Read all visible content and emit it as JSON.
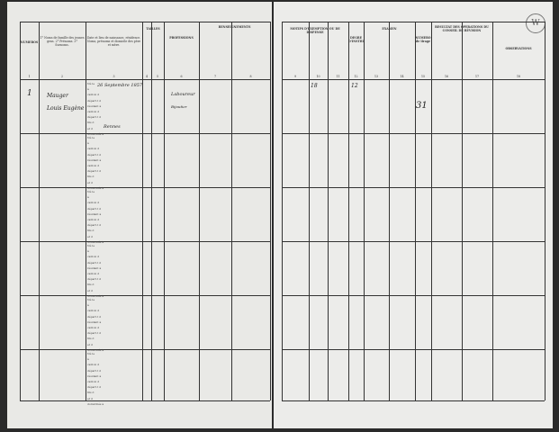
{
  "left_headers": [
    "NUMÉROS",
    "1° Noms de famille des jeunes gens. 2° Prénoms. 3° Surnoms.",
    "Date et lieu de naissance, résidence. Noms, prénoms et domicile des père et mère.",
    "TAILLES",
    "PROFESSIONS",
    "RENSEIGNEMENTS",
    "1",
    "2",
    "3",
    "4",
    "5",
    "6",
    "7",
    "8"
  ],
  "right_headers": [
    "MOTIFS D'EXEMPTION OU DE DISPENSE",
    "DEGRÉ D'INSTRUCTION",
    "EXAMEN",
    "NUMÉRO de tirage",
    "RÉSULTAT DES OPÉRATIONS DU CONSEIL DE RÉVISION",
    "OBSERVATIONS",
    "9",
    "10",
    "11",
    "12",
    "13",
    "14",
    "15",
    "16",
    "17",
    "18"
  ],
  "row_prefix": [
    "Né le",
    "à",
    "canton d",
    "départ.t d",
    "résidant à",
    "canton d",
    "départ.t d",
    "fils d",
    "et d",
    "domiciliés à"
  ],
  "entry": {
    "number": "1",
    "surname": "Mauger",
    "given": "Louis Eugène",
    "birth": "26 Septembre 1857",
    "place": "Rennes",
    "profession": "Laboureur",
    "extra": "Bijoutier",
    "mark": "18",
    "tirage": "31",
    "note": "12"
  },
  "stamp_text": "W"
}
